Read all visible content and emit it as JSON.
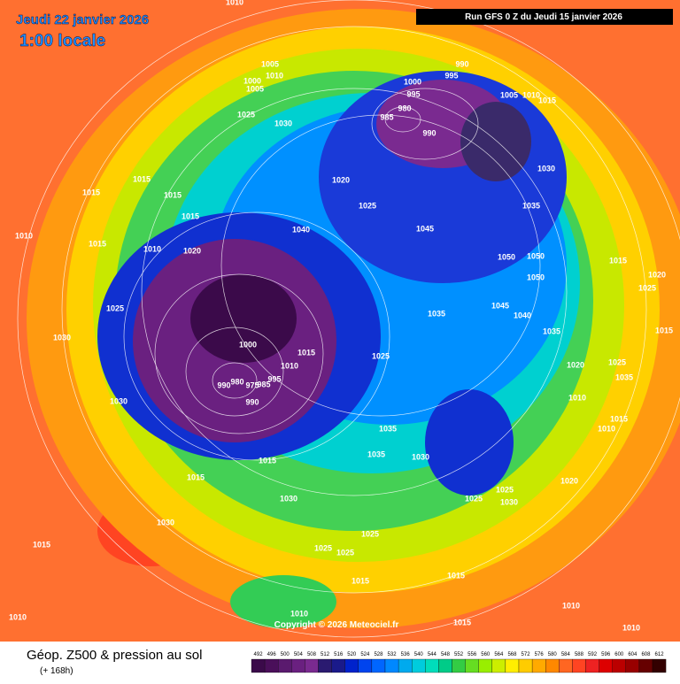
{
  "header": {
    "date": "Jeudi 22 janvier 2026",
    "time": "1:00 locale",
    "run": "Run GFS 0 Z du Jeudi 15 janvier 2026"
  },
  "map": {
    "copyright": "Copyright © 2026 Meteociel.fr",
    "pressure_labels": [
      1010,
      1005,
      1010,
      1000,
      1005,
      1025,
      1030,
      990,
      995,
      1000,
      995,
      1005,
      1010,
      1015,
      980,
      985,
      990,
      1030,
      1035,
      1020,
      1025,
      1015,
      1015,
      1015,
      1015,
      1010,
      1015,
      1010,
      1020,
      1040,
      1045,
      1050,
      1050,
      1050,
      1015,
      1020,
      1025,
      1025,
      1030,
      1000,
      1045,
      1040,
      1035,
      1035,
      1015,
      1010,
      1025,
      990,
      980,
      975,
      985,
      995,
      990,
      1030,
      1020,
      1025,
      1035,
      1010,
      1015,
      1010,
      1035,
      1035,
      1030,
      1015,
      1015,
      1020,
      1025,
      1025,
      1030,
      1030,
      1030,
      1015,
      1025,
      1025,
      1025,
      1015,
      1015,
      1010,
      1010,
      1010,
      1015,
      1010,
      1015
    ]
  },
  "footer": {
    "title": "Géop. Z500 & pression au sol",
    "lead": "(+ 168h)"
  },
  "legend": {
    "values": [
      492,
      496,
      500,
      504,
      508,
      512,
      516,
      520,
      524,
      528,
      532,
      536,
      540,
      544,
      548,
      552,
      556,
      560,
      564,
      568,
      572,
      576,
      580,
      584,
      588,
      592,
      596,
      600,
      604,
      608,
      612
    ],
    "colors": [
      "#3b0a4a",
      "#4a0f5a",
      "#5a1a6e",
      "#6a2080",
      "#7a2a90",
      "#2a1a70",
      "#1a1a8a",
      "#0022cc",
      "#0044ee",
      "#0066ff",
      "#0088ff",
      "#00aaee",
      "#00ccdd",
      "#00ddbb",
      "#00cc88",
      "#33cc44",
      "#66dd22",
      "#99ee00",
      "#ccee00",
      "#ffee00",
      "#ffcc00",
      "#ffaa00",
      "#ff8800",
      "#ff6622",
      "#ff4422",
      "#ee2222",
      "#dd0000",
      "#bb0000",
      "#990000",
      "#660000",
      "#330000"
    ]
  }
}
